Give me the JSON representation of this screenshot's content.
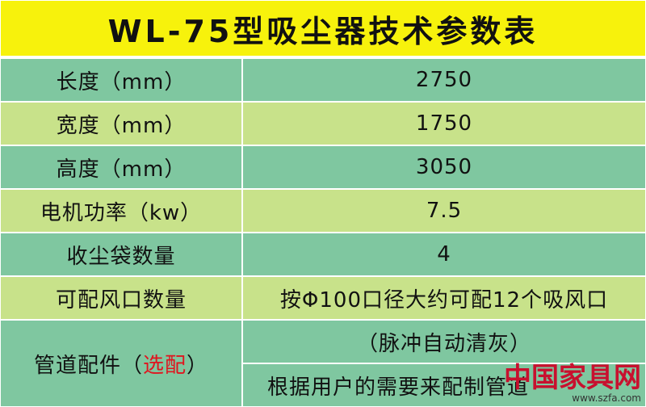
{
  "header": {
    "title": "WL-75型吸尘器技术参数表"
  },
  "table": {
    "rows": [
      [
        "长度（mm）",
        "2750"
      ],
      [
        "宽度（mm）",
        "1750"
      ],
      [
        "高度（mm）",
        "3050"
      ],
      [
        "电机功率（kw）",
        "7.5"
      ],
      [
        "收尘袋数量",
        "4"
      ],
      [
        "可配风口数量",
        "按Φ100口径大约可配12个吸风口"
      ]
    ],
    "last_row": {
      "label_parts": [
        "管道配件（",
        "选配",
        "）"
      ],
      "values": [
        "（脉冲自动清灰）",
        "根据用户的需要来配制管道"
      ]
    }
  },
  "watermark": {
    "name": "中国家具网",
    "url": "www.szfa.com"
  }
}
